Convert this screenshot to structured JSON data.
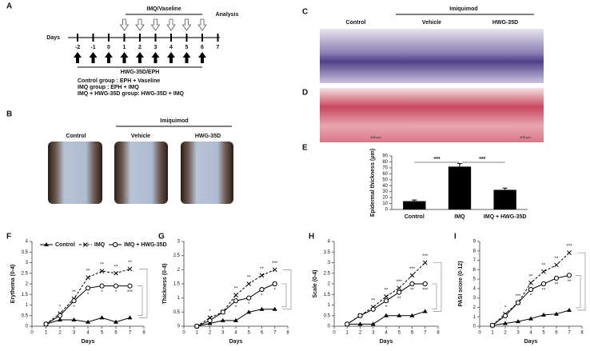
{
  "schematic": {
    "panel": "A",
    "days_label": "Days",
    "days": [
      "-2",
      "-1",
      "0",
      "1",
      "2",
      "3",
      "4",
      "5",
      "6",
      "7"
    ],
    "treatment_top": "IMQ/Vaseline",
    "analysis": "Analysis",
    "treatment_bottom": "HWG-35D/EPH",
    "groups": [
      "Control group : EPH + Vaseline",
      "IMQ group : EPH + IMQ",
      "IMQ + HWG-35D group: HWG-35D + IMQ"
    ]
  },
  "photos": {
    "panel": "B",
    "control": "Control",
    "treatment": "Imiquimod",
    "vehicle": "Vehicle",
    "hwg": "HWG-35D"
  },
  "histology": {
    "panel_he": "C",
    "panel_d": "D",
    "control": "Control",
    "treatment": "Imiquimod",
    "vehicle": "Vehicle",
    "hwg": "HWG-35D",
    "scale_bar": "100 μm"
  },
  "chart_data": [
    {
      "type": "bar",
      "panel": "E",
      "y_label": "Epidermal thickness (μm)",
      "categories": [
        "Control",
        "IMQ",
        "IMQ + HWG-35D"
      ],
      "values": [
        14,
        72,
        33
      ],
      "errors": [
        2,
        5,
        3
      ],
      "color": "#000000",
      "ylim": [
        0,
        90
      ],
      "yticks": [
        0,
        10,
        20,
        30,
        40,
        50,
        60,
        70,
        80,
        90
      ],
      "significance_labels": [
        "***",
        "***"
      ]
    },
    {
      "type": "line",
      "panel": "F",
      "y_label": "Erythema (0-4)",
      "x_label": "Days",
      "xlim": [
        0,
        8
      ],
      "xticks": [
        0,
        1,
        2,
        3,
        4,
        5,
        6,
        7,
        8
      ],
      "ylim": [
        0,
        4
      ],
      "yticks": [
        0,
        0.5,
        1,
        1.5,
        2,
        2.5,
        3,
        3.5,
        4
      ],
      "legend": "top",
      "x": [
        1,
        2,
        3,
        4,
        5,
        6,
        7
      ],
      "series": [
        {
          "name": "Control",
          "color": "#000000",
          "marker": "triangle",
          "dashed": false,
          "values": [
            0.1,
            0.3,
            0.3,
            0.2,
            0.4,
            0.2,
            0.4
          ]
        },
        {
          "name": "IMQ",
          "color": "#000000",
          "marker": "x",
          "dashed": true,
          "values": [
            0.1,
            0.6,
            1.3,
            2.3,
            2.6,
            2.5,
            2.7
          ],
          "significance": [
            null,
            "*",
            "**",
            "**",
            "**",
            "**",
            "**"
          ]
        },
        {
          "name": "IMQ + HWG-35D",
          "color": "#000000",
          "marker": "circle",
          "dashed": false,
          "values": [
            0.1,
            0.5,
            1.2,
            1.8,
            1.9,
            1.9,
            1.9
          ],
          "significance": [
            null,
            null,
            "*",
            "*",
            "*",
            "*",
            "***"
          ]
        }
      ]
    },
    {
      "type": "line",
      "panel": "G",
      "y_label": "Thickness (0-4)",
      "x_label": "Days",
      "xlim": [
        0,
        8
      ],
      "xticks": [
        0,
        1,
        2,
        3,
        4,
        5,
        6,
        7,
        8
      ],
      "ylim": [
        0,
        3
      ],
      "yticks": [
        0,
        0.5,
        1,
        1.5,
        2,
        2.5,
        3
      ],
      "x": [
        1,
        2,
        3,
        4,
        5,
        6,
        7
      ],
      "series": [
        {
          "color": "#000000",
          "marker": "triangle",
          "dashed": false,
          "values": [
            0,
            0.1,
            0.2,
            0.2,
            0.5,
            0.6,
            0.6
          ]
        },
        {
          "color": "#000000",
          "marker": "x",
          "dashed": true,
          "values": [
            0,
            0.3,
            0.5,
            1.1,
            1.5,
            1.8,
            2.0
          ],
          "significance": [
            null,
            "*",
            null,
            "**",
            "**",
            "**",
            "***"
          ]
        },
        {
          "color": "#000000",
          "marker": "circle",
          "dashed": false,
          "values": [
            0,
            0.2,
            0.5,
            0.9,
            1.0,
            1.3,
            1.5
          ],
          "significance": [
            null,
            null,
            null,
            "*",
            "*",
            "*",
            "*"
          ]
        }
      ]
    },
    {
      "type": "line",
      "panel": "H",
      "y_label": "Scale (0-4)",
      "x_label": "Days",
      "xlim": [
        0,
        8
      ],
      "xticks": [
        0,
        1,
        2,
        3,
        4,
        5,
        6,
        7,
        8
      ],
      "ylim": [
        0,
        4
      ],
      "yticks": [
        0,
        0.5,
        1,
        1.5,
        2,
        2.5,
        3,
        3.5,
        4
      ],
      "x": [
        1,
        2,
        3,
        4,
        5,
        6,
        7
      ],
      "series": [
        {
          "color": "#000000",
          "marker": "triangle",
          "dashed": false,
          "values": [
            0.1,
            0.1,
            0.1,
            0.5,
            0.5,
            0.5,
            0.7
          ]
        },
        {
          "color": "#000000",
          "marker": "x",
          "dashed": true,
          "values": [
            0.1,
            0.5,
            0.9,
            1.4,
            1.8,
            2.4,
            3.0
          ],
          "significance": [
            null,
            null,
            "**",
            "**",
            "***",
            "***",
            "***"
          ]
        },
        {
          "color": "#000000",
          "marker": "circle",
          "dashed": false,
          "values": [
            0.1,
            0.5,
            0.8,
            1.2,
            1.6,
            2.0,
            2.0
          ],
          "significance": [
            null,
            null,
            null,
            "*",
            "**",
            "**",
            "***"
          ]
        }
      ]
    },
    {
      "type": "line",
      "panel": "I",
      "y_label": "PASI score (0-12)",
      "x_label": "Days",
      "xlim": [
        0,
        8
      ],
      "xticks": [
        0,
        1,
        2,
        3,
        4,
        5,
        6,
        7,
        8
      ],
      "ylim": [
        0,
        9
      ],
      "yticks": [
        0,
        1,
        2,
        3,
        4,
        5,
        6,
        7,
        8,
        9
      ],
      "x": [
        1,
        2,
        3,
        4,
        5,
        6,
        7
      ],
      "series": [
        {
          "color": "#000000",
          "marker": "triangle",
          "dashed": false,
          "values": [
            0.1,
            0.3,
            0.5,
            0.8,
            1.2,
            1.3,
            1.7
          ]
        },
        {
          "color": "#000000",
          "marker": "x",
          "dashed": true,
          "values": [
            0.1,
            1.3,
            2.5,
            4.6,
            5.8,
            6.5,
            7.8
          ],
          "significance": [
            null,
            "*",
            "***",
            "**",
            "**",
            "**",
            "***"
          ]
        },
        {
          "color": "#000000",
          "marker": "circle",
          "dashed": false,
          "values": [
            0.1,
            1.1,
            2.5,
            3.9,
            4.5,
            5.1,
            5.4
          ],
          "significance": [
            null,
            null,
            null,
            "*",
            "**",
            "**",
            "**"
          ]
        }
      ]
    }
  ]
}
